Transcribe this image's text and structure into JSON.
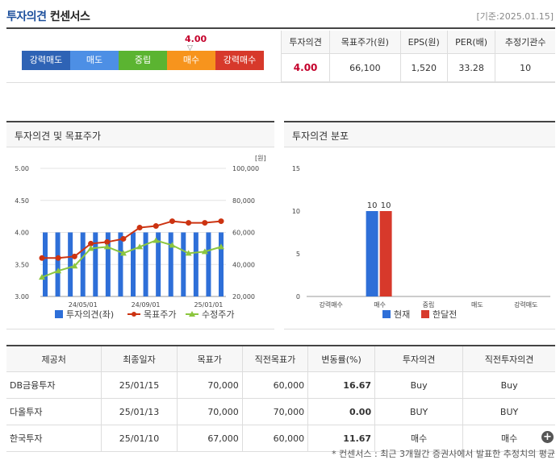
{
  "header": {
    "title_part1": "투자의견",
    "title_part2": "컨센서스",
    "date": "[기준:2025.01.15]"
  },
  "scale": {
    "current_value": "4.00",
    "current_position_value": 4.0,
    "items": [
      {
        "label": "강력매도",
        "color": "#2e63b5"
      },
      {
        "label": "매도",
        "color": "#4d8fe5"
      },
      {
        "label": "중립",
        "color": "#5bb431"
      },
      {
        "label": "매수",
        "color": "#f7941d"
      },
      {
        "label": "강력매수",
        "color": "#d7392b"
      }
    ]
  },
  "summary": {
    "headers": [
      "투자의견",
      "목표주가(원)",
      "EPS(원)",
      "PER(배)",
      "추정기관수"
    ],
    "values": [
      "4.00",
      "66,100",
      "1,520",
      "33.28",
      "10"
    ]
  },
  "left_panel": {
    "title": "투자의견 및 목표주가"
  },
  "right_panel": {
    "title": "투자의견 분포"
  },
  "chart_data": [
    {
      "type": "bar",
      "title": "투자의견 및 목표주가",
      "y_left_ticks": [
        "5.00",
        "4.50",
        "4.00",
        "3.50",
        "3.00"
      ],
      "y_left_range": [
        3.0,
        5.0
      ],
      "y_right_ticks": [
        "100,000",
        "80,000",
        "60,000",
        "40,000",
        "20,000"
      ],
      "y_right_range": [
        20000,
        100000
      ],
      "y_right_unit": "[원]",
      "x_ticks": [
        "24/05/01",
        "24/09/01",
        "25/01/01"
      ],
      "x_tick_index": [
        3,
        8,
        13
      ],
      "series": [
        {
          "name": "투자의견(좌)",
          "type": "bar",
          "color": "#2e6fd8",
          "values": [
            4.0,
            4.0,
            4.0,
            4.0,
            4.0,
            4.0,
            4.0,
            4.0,
            4.0,
            4.0,
            4.0,
            4.0,
            4.0,
            4.0,
            4.0
          ]
        },
        {
          "name": "목표주가",
          "type": "line",
          "color": "#cc3311",
          "values": [
            44000,
            44000,
            45000,
            53000,
            54000,
            56000,
            63000,
            64000,
            67000,
            66000,
            66000,
            67000
          ]
        },
        {
          "name": "수정주가",
          "type": "line",
          "color": "#8cc63f",
          "values": [
            32000,
            36000,
            39000,
            50000,
            51000,
            47000,
            51000,
            55000,
            52000,
            47000,
            48000,
            51000
          ]
        }
      ],
      "line_x_index": [
        0,
        1,
        2,
        3,
        4,
        5,
        6,
        7,
        8,
        9,
        10,
        11
      ]
    },
    {
      "type": "bar",
      "title": "투자의견 분포",
      "categories": [
        "강력매수",
        "매수",
        "중립",
        "매도",
        "강력매도"
      ],
      "y_ticks": [
        "15",
        "10",
        "5",
        "0"
      ],
      "y_range": [
        0,
        15
      ],
      "series": [
        {
          "name": "현재",
          "color": "#2e6fd8",
          "values": [
            0,
            10,
            0,
            0,
            0
          ]
        },
        {
          "name": "한달전",
          "color": "#d7392b",
          "values": [
            0,
            10,
            0,
            0,
            0
          ]
        }
      ]
    }
  ],
  "table": {
    "headers": [
      "제공처",
      "최종일자",
      "목표가",
      "직전목표가",
      "변동률(%)",
      "투자의견",
      "직전투자의견"
    ],
    "rows": [
      [
        "DB금융투자",
        "25/01/15",
        "70,000",
        "60,000",
        "16.67",
        "Buy",
        "Buy"
      ],
      [
        "다올투자",
        "25/01/13",
        "70,000",
        "70,000",
        "0.00",
        "BUY",
        "BUY"
      ],
      [
        "한국투자",
        "25/01/10",
        "67,000",
        "60,000",
        "11.67",
        "매수",
        "매수"
      ]
    ]
  },
  "footnote": "* 컨센서스 : 최근 3개월간 증권사에서 발표한 추정치의 평균"
}
